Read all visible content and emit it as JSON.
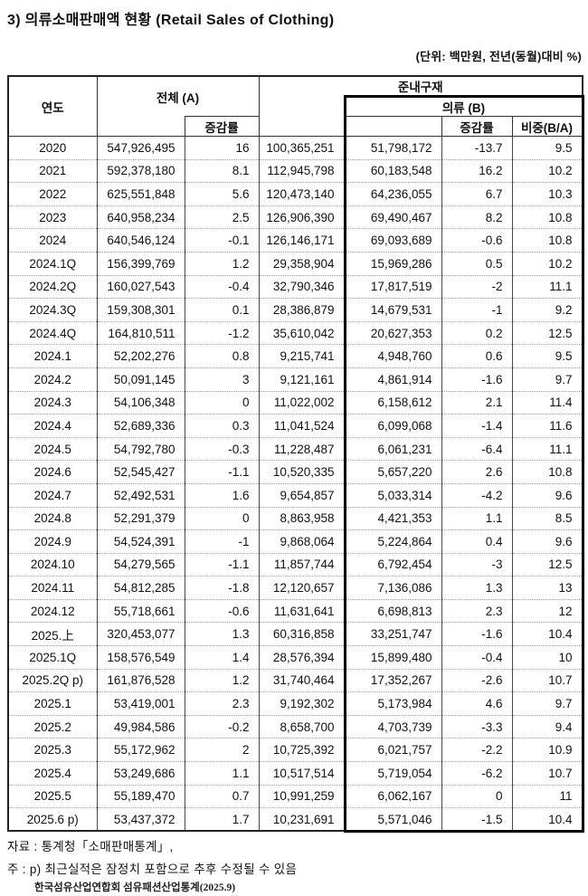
{
  "title": "3) 의류소매판매액 현황 (Retail Sales of Clothing)",
  "unit_note": "(단위: 백만원, 전년(동월)대비 %)",
  "table": {
    "col_headers": {
      "year": "연도",
      "total_a": "전체 (A)",
      "total_growth": "증감률",
      "semi_durable": "준내구재",
      "clothing_b": "의류 (B)",
      "clothing_growth": "증감률",
      "share_ba": "비중(B/A)"
    },
    "rows": [
      [
        "2020",
        "547,926,495",
        "16",
        "100,365,251",
        "51,798,172",
        "-13.7",
        "9.5"
      ],
      [
        "2021",
        "592,378,180",
        "8.1",
        "112,945,798",
        "60,183,548",
        "16.2",
        "10.2"
      ],
      [
        "2022",
        "625,551,848",
        "5.6",
        "120,473,140",
        "64,236,055",
        "6.7",
        "10.3"
      ],
      [
        "2023",
        "640,958,234",
        "2.5",
        "126,906,390",
        "69,490,467",
        "8.2",
        "10.8"
      ],
      [
        "2024",
        "640,546,124",
        "-0.1",
        "126,146,171",
        "69,093,689",
        "-0.6",
        "10.8"
      ],
      [
        "2024.1Q",
        "156,399,769",
        "1.2",
        "29,358,904",
        "15,969,286",
        "0.5",
        "10.2"
      ],
      [
        "2024.2Q",
        "160,027,543",
        "-0.4",
        "32,790,346",
        "17,817,519",
        "-2",
        "11.1"
      ],
      [
        "2024.3Q",
        "159,308,301",
        "0.1",
        "28,386,879",
        "14,679,531",
        "-1",
        "9.2"
      ],
      [
        "2024.4Q",
        "164,810,511",
        "-1.2",
        "35,610,042",
        "20,627,353",
        "0.2",
        "12.5"
      ],
      [
        "2024.1",
        "52,202,276",
        "0.8",
        "9,215,741",
        "4,948,760",
        "0.6",
        "9.5"
      ],
      [
        "2024.2",
        "50,091,145",
        "3",
        "9,121,161",
        "4,861,914",
        "-1.6",
        "9.7"
      ],
      [
        "2024.3",
        "54,106,348",
        "0",
        "11,022,002",
        "6,158,612",
        "2.1",
        "11.4"
      ],
      [
        "2024.4",
        "52,689,336",
        "0.3",
        "11,041,524",
        "6,099,068",
        "-1.4",
        "11.6"
      ],
      [
        "2024.5",
        "54,792,780",
        "-0.3",
        "11,228,487",
        "6,061,231",
        "-6.4",
        "11.1"
      ],
      [
        "2024.6",
        "52,545,427",
        "-1.1",
        "10,520,335",
        "5,657,220",
        "2.6",
        "10.8"
      ],
      [
        "2024.7",
        "52,492,531",
        "1.6",
        "9,654,857",
        "5,033,314",
        "-4.2",
        "9.6"
      ],
      [
        "2024.8",
        "52,291,379",
        "0",
        "8,863,958",
        "4,421,353",
        "1.1",
        "8.5"
      ],
      [
        "2024.9",
        "54,524,391",
        "-1",
        "9,868,064",
        "5,224,864",
        "0.4",
        "9.6"
      ],
      [
        "2024.10",
        "54,279,565",
        "-1.1",
        "11,857,744",
        "6,792,454",
        "-3",
        "12.5"
      ],
      [
        "2024.11",
        "54,812,285",
        "-1.8",
        "12,120,657",
        "7,136,086",
        "1.3",
        "13"
      ],
      [
        "2024.12",
        "55,718,661",
        "-0.6",
        "11,631,641",
        "6,698,813",
        "2.3",
        "12"
      ],
      [
        "2025.上",
        "320,453,077",
        "1.3",
        "60,316,858",
        "33,251,747",
        "-1.6",
        "10.4"
      ],
      [
        "2025.1Q",
        "158,576,549",
        "1.4",
        "28,576,394",
        "15,899,480",
        "-0.4",
        "10"
      ],
      [
        "2025.2Q p)",
        "161,876,528",
        "1.2",
        "31,740,464",
        "17,352,267",
        "-2.6",
        "10.7"
      ],
      [
        "2025.1",
        "53,419,001",
        "2.3",
        "9,192,302",
        "5,173,984",
        "4.6",
        "9.7"
      ],
      [
        "2025.2",
        "49,984,586",
        "-0.2",
        "8,658,700",
        "4,703,739",
        "-3.3",
        "9.4"
      ],
      [
        "2025.3",
        "55,172,962",
        "2",
        "10,725,392",
        "6,021,757",
        "-2.2",
        "10.9"
      ],
      [
        "2025.4",
        "53,249,686",
        "1.1",
        "10,517,514",
        "5,719,054",
        "-6.2",
        "10.7"
      ],
      [
        "2025.5",
        "55,189,470",
        "0.7",
        "10,991,259",
        "6,062,167",
        "0",
        "11"
      ],
      [
        "2025.6 p)",
        "53,437,372",
        "1.7",
        "10,231,691",
        "5,571,046",
        "-1.5",
        "10.4"
      ]
    ]
  },
  "footnotes": {
    "source": "자료 : 통계청「소매판매통계」,",
    "note": "주 : p) 최근실적은 잠정치 포함으로 추후 수정될 수 있음",
    "org": "한국섬유산업연합회 섬유패션산업통계(2025.9)"
  }
}
